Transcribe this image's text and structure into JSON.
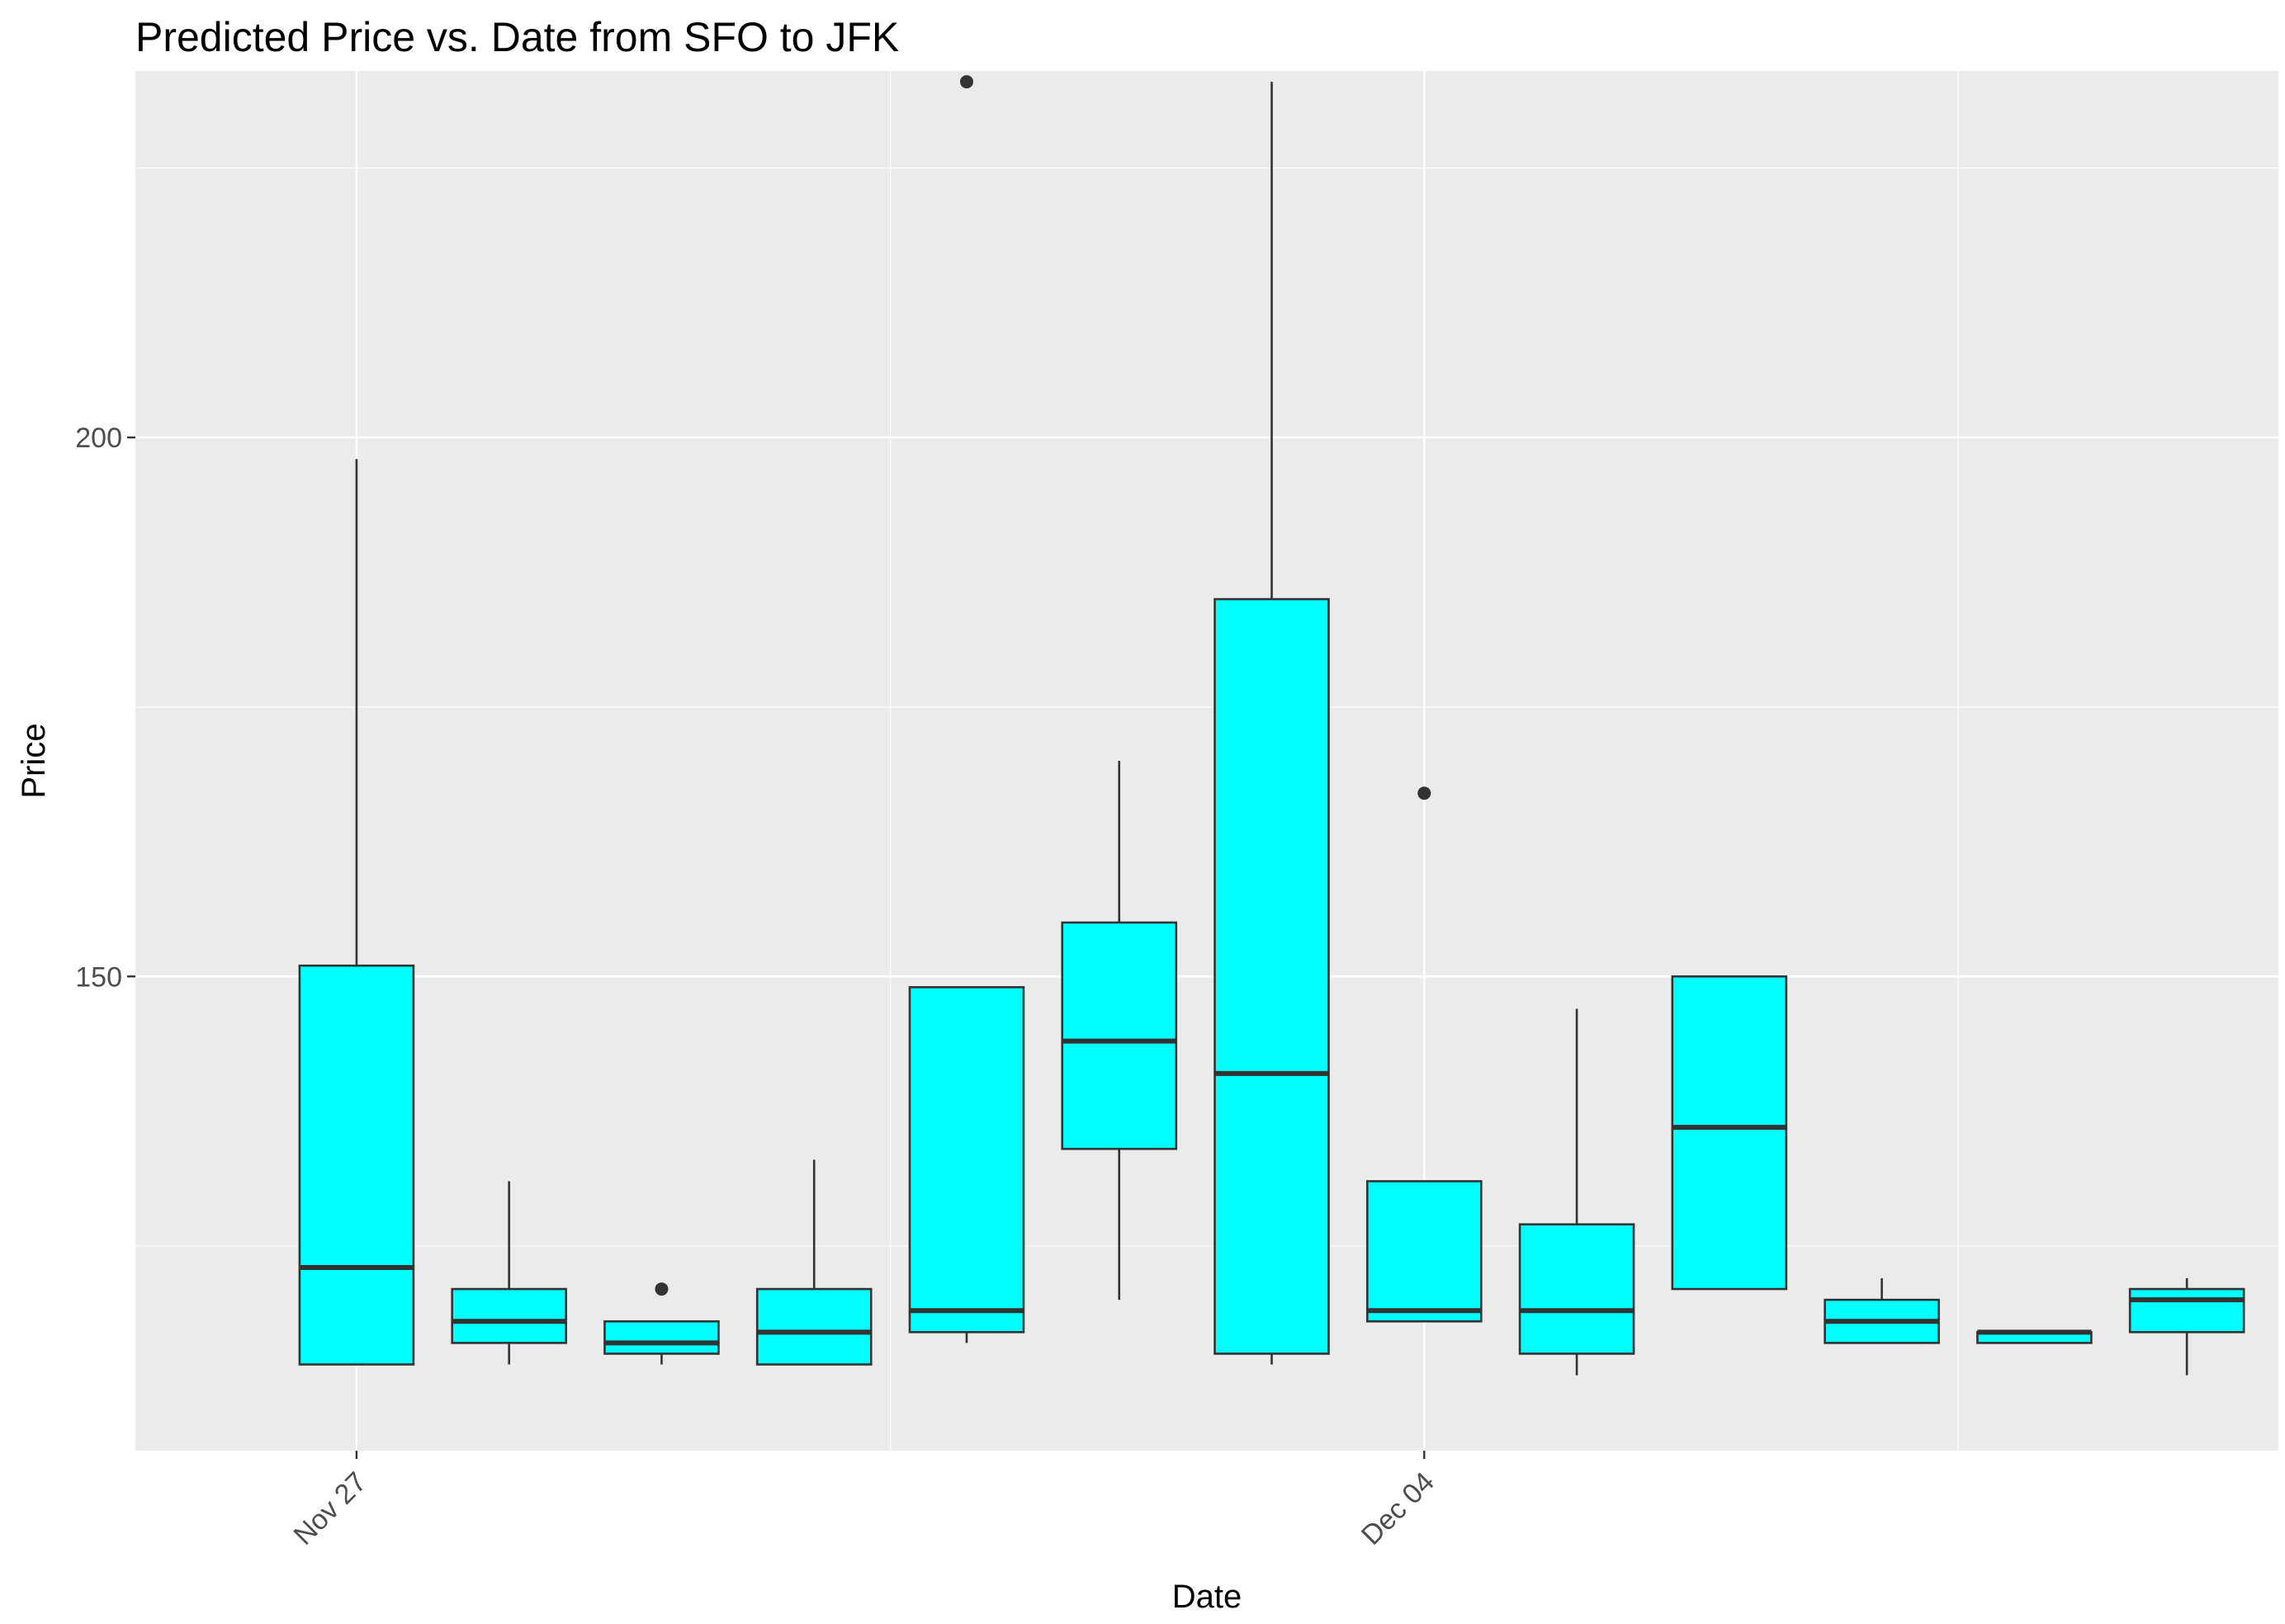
{
  "chart_data": {
    "type": "boxplot",
    "title": "Predicted Price vs. Date from SFO to JFK",
    "xlabel": "Date",
    "ylabel": "Price",
    "ylim": [
      106,
      234
    ],
    "y_ticks": [
      150,
      200
    ],
    "y_minor_ticks": [
      125,
      175,
      225
    ],
    "x_tick_labels": [
      {
        "label": "Nov 27",
        "day_index": 0
      },
      {
        "label": "Dec 04",
        "day_index": 7
      }
    ],
    "x_minor_grid_days": [
      3.5,
      10.5
    ],
    "xlim_days": [
      -1.45,
      12.6
    ],
    "box_fill": "#00FFFF",
    "panel_background": "#EBEBEB",
    "boxes": [
      {
        "day": "Nov 27",
        "day_index": 0,
        "min": 114,
        "q1": 114,
        "median": 123,
        "q3": 151,
        "max": 198,
        "outliers": []
      },
      {
        "day": "Nov 28",
        "day_index": 1,
        "min": 114,
        "q1": 116,
        "median": 118,
        "q3": 121,
        "max": 131,
        "outliers": []
      },
      {
        "day": "Nov 29",
        "day_index": 2,
        "min": 114,
        "q1": 115,
        "median": 116,
        "q3": 118,
        "max": 118,
        "outliers": [
          121
        ]
      },
      {
        "day": "Nov 30",
        "day_index": 3,
        "min": 114,
        "q1": 114,
        "median": 117,
        "q3": 121,
        "max": 133,
        "outliers": []
      },
      {
        "day": "Dec 01",
        "day_index": 4,
        "min": 116,
        "q1": 117,
        "median": 119,
        "q3": 149,
        "max": 149,
        "outliers": [
          233
        ]
      },
      {
        "day": "Dec 02",
        "day_index": 5,
        "min": 120,
        "q1": 134,
        "median": 144,
        "q3": 155,
        "max": 170,
        "outliers": []
      },
      {
        "day": "Dec 03",
        "day_index": 6,
        "min": 114,
        "q1": 115,
        "median": 141,
        "q3": 185,
        "max": 233,
        "outliers": []
      },
      {
        "day": "Dec 04",
        "day_index": 7,
        "min": 118,
        "q1": 118,
        "median": 119,
        "q3": 131,
        "max": 131,
        "outliers": [
          167
        ]
      },
      {
        "day": "Dec 05",
        "day_index": 8,
        "min": 113,
        "q1": 115,
        "median": 119,
        "q3": 127,
        "max": 147,
        "outliers": []
      },
      {
        "day": "Dec 06",
        "day_index": 9,
        "min": 121,
        "q1": 121,
        "median": 136,
        "q3": 150,
        "max": 150,
        "outliers": []
      },
      {
        "day": "Dec 07",
        "day_index": 10,
        "min": 116,
        "q1": 116,
        "median": 118,
        "q3": 120,
        "max": 122,
        "outliers": []
      },
      {
        "day": "Dec 08",
        "day_index": 11,
        "min": 116,
        "q1": 116,
        "median": 117,
        "q3": 117,
        "max": 117,
        "outliers": []
      },
      {
        "day": "Dec 09",
        "day_index": 12,
        "min": 113,
        "q1": 117,
        "median": 120,
        "q3": 121,
        "max": 122,
        "outliers": []
      }
    ]
  }
}
